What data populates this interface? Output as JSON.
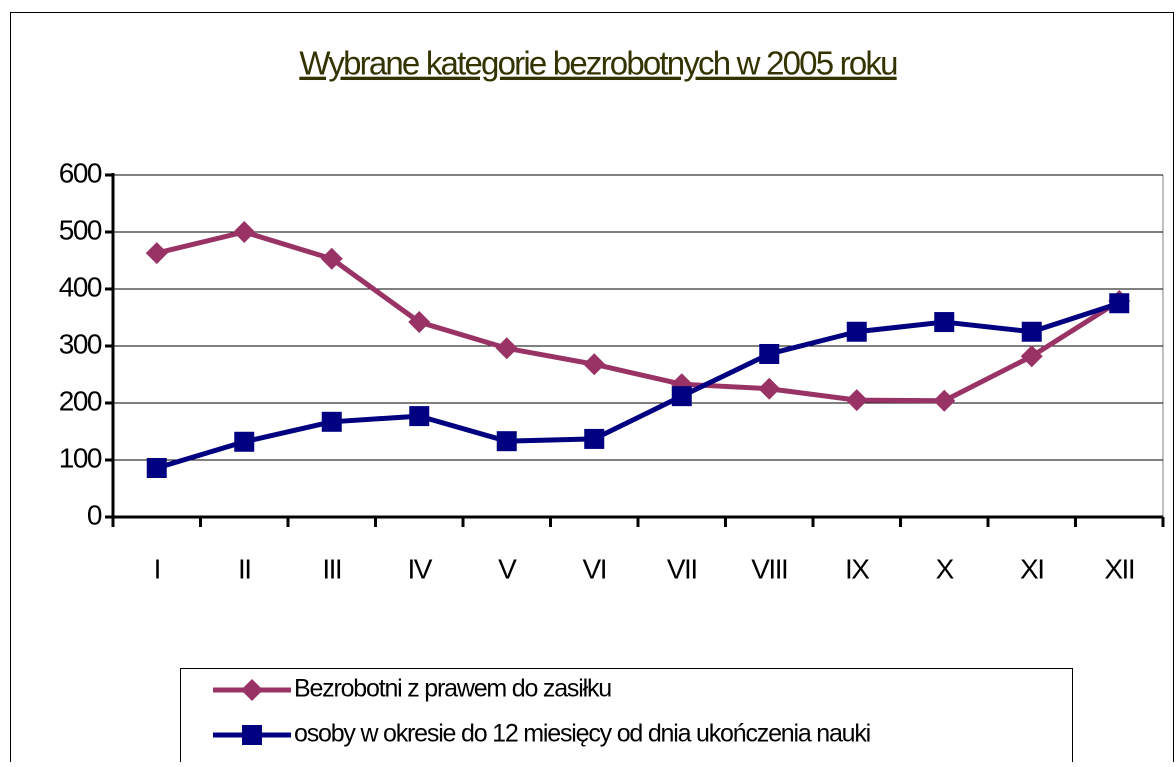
{
  "chart_data": {
    "type": "line",
    "title": "Wybrane kategorie bezrobotnych w 2005 roku",
    "categories": [
      "I",
      "II",
      "III",
      "IV",
      "V",
      "VI",
      "VII",
      "VIII",
      "IX",
      "X",
      "XI",
      "XII"
    ],
    "series": [
      {
        "name": "Bezrobotni z prawem do zasiłku",
        "color": "#993366",
        "marker": "diamond",
        "values": [
          463,
          500,
          453,
          342,
          296,
          268,
          233,
          225,
          205,
          204,
          282,
          379
        ]
      },
      {
        "name": "osoby w okresie do 12 miesięcy od dnia ukończenia nauki",
        "color": "#000080",
        "marker": "square",
        "values": [
          86,
          132,
          167,
          177,
          133,
          137,
          212,
          286,
          325,
          342,
          325,
          375
        ]
      }
    ],
    "ylim": [
      0,
      600
    ],
    "yticks": [
      0,
      100,
      200,
      300,
      400,
      500,
      600
    ],
    "grid": true,
    "legend": "bottom"
  }
}
